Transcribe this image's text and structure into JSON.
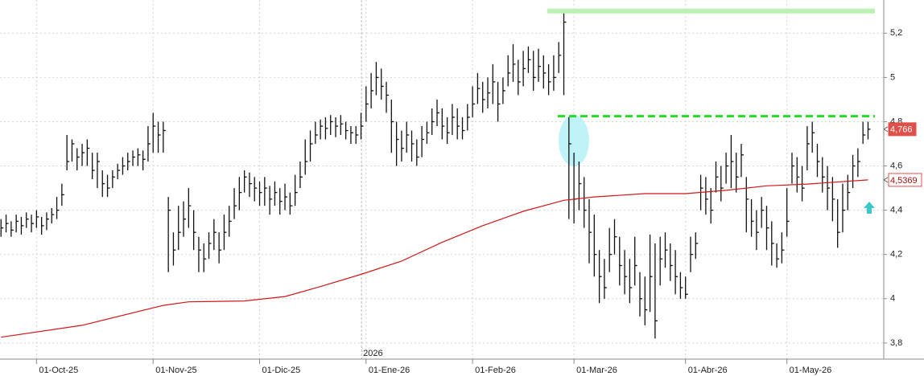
{
  "chart_data": {
    "type": "ohlc",
    "color": "#111111",
    "xlim": [
      -0.2,
      174.1
    ],
    "ylim": [
      3.727,
      5.35
    ],
    "yticks": [
      {
        "value": 3.8,
        "label": "3,8"
      },
      4,
      {
        "value": 4.2,
        "label": "4,2"
      },
      {
        "value": 4.4,
        "label": "4,4"
      },
      {
        "value": 4.6,
        "label": "4,6"
      },
      {
        "value": 4.8,
        "label": "4,8"
      },
      5,
      {
        "value": 5.2,
        "label": "5,2"
      }
    ],
    "xticks": [
      {
        "value": 7,
        "label": "01-Oct-25"
      },
      {
        "value": 30,
        "label": "01-Nov-25"
      },
      {
        "value": 51,
        "label": "01-Dic-25"
      },
      {
        "value": 72,
        "label": "01-Ene-26"
      },
      {
        "value": 93,
        "label": "01-Feb-26"
      },
      {
        "value": 113,
        "label": "01-Mar-26"
      },
      {
        "value": 135,
        "label": "01-Abr-26"
      },
      {
        "value": 155,
        "label": "01-May-26"
      }
    ],
    "grid": true,
    "year_marker": {
      "value": 71.1,
      "label": "2026"
    },
    "close": [
      4.32,
      4.34,
      4.31,
      4.35,
      4.33,
      4.36,
      4.34,
      4.37,
      4.33,
      4.36,
      4.38,
      4.4,
      4.47,
      4.62,
      4.7,
      4.64,
      4.66,
      4.68,
      4.58,
      4.62,
      4.52,
      4.5,
      4.55,
      4.58,
      4.6,
      4.62,
      4.64,
      4.65,
      4.63,
      4.7,
      4.78,
      4.74,
      4.76,
      4.4,
      4.22,
      4.3,
      4.36,
      4.42,
      4.3,
      4.22,
      4.18,
      4.25,
      4.3,
      4.22,
      4.3,
      4.35,
      4.42,
      4.48,
      4.55,
      4.52,
      4.5,
      4.48,
      4.5,
      4.45,
      4.48,
      4.44,
      4.46,
      4.42,
      4.48,
      4.55,
      4.62,
      4.7,
      4.74,
      4.78,
      4.77,
      4.8,
      4.78,
      4.79,
      4.76,
      4.75,
      4.74,
      4.78,
      4.88,
      4.94,
      5.0,
      4.96,
      4.92,
      4.8,
      4.72,
      4.68,
      4.74,
      4.7,
      4.64,
      4.72,
      4.75,
      4.8,
      4.84,
      4.78,
      4.75,
      4.82,
      4.78,
      4.76,
      4.82,
      4.88,
      4.95,
      4.9,
      4.93,
      4.98,
      4.88,
      4.94,
      5.02,
      5.06,
      4.98,
      5.04,
      5.08,
      5.0,
      5.05,
      5.02,
      4.98,
      5.0,
      5.1,
      5.25,
      4.7,
      4.45,
      4.52,
      4.4,
      4.3,
      4.2,
      4.1,
      4.05,
      4.2,
      4.28,
      4.15,
      4.1,
      4.05,
      4.15,
      4.0,
      3.95,
      4.1,
      3.9,
      4.18,
      4.22,
      4.15,
      4.1,
      4.05,
      4.02,
      4.2,
      4.25,
      4.5,
      4.45,
      4.4,
      4.55,
      4.5,
      4.6,
      4.62,
      4.55,
      4.65,
      4.45,
      4.35,
      4.3,
      4.4,
      4.32,
      4.25,
      4.18,
      4.22,
      4.35,
      4.6,
      4.55,
      4.5,
      4.7,
      4.75,
      4.62,
      4.55,
      4.5,
      4.45,
      4.3,
      4.4,
      4.48,
      4.6,
      4.62,
      4.74,
      4.766
    ],
    "high": [
      4.36,
      4.38,
      4.35,
      4.38,
      4.37,
      4.39,
      4.38,
      4.4,
      4.37,
      4.39,
      4.41,
      4.46,
      4.52,
      4.74,
      4.72,
      4.68,
      4.7,
      4.72,
      4.66,
      4.66,
      4.58,
      4.56,
      4.58,
      4.61,
      4.64,
      4.66,
      4.67,
      4.68,
      4.67,
      4.78,
      4.84,
      4.8,
      4.8,
      4.46,
      4.3,
      4.42,
      4.44,
      4.5,
      4.4,
      4.28,
      4.25,
      4.3,
      4.36,
      4.3,
      4.38,
      4.42,
      4.5,
      4.55,
      4.58,
      4.57,
      4.55,
      4.53,
      4.55,
      4.51,
      4.53,
      4.5,
      4.52,
      4.48,
      4.56,
      4.62,
      4.72,
      4.76,
      4.8,
      4.81,
      4.82,
      4.83,
      4.82,
      4.83,
      4.8,
      4.78,
      4.78,
      4.84,
      4.96,
      5.02,
      5.07,
      5.04,
      4.98,
      4.9,
      4.8,
      4.76,
      4.8,
      4.76,
      4.72,
      4.78,
      4.8,
      4.86,
      4.9,
      4.86,
      4.82,
      4.88,
      4.86,
      4.82,
      4.88,
      4.96,
      5.02,
      4.98,
      5.0,
      5.06,
      4.98,
      5.0,
      5.1,
      5.15,
      5.08,
      5.12,
      5.14,
      5.12,
      5.13,
      5.1,
      5.06,
      5.1,
      5.16,
      5.3,
      4.82,
      4.66,
      4.62,
      4.55,
      4.45,
      4.38,
      4.22,
      4.18,
      4.32,
      4.36,
      4.28,
      4.22,
      4.18,
      4.28,
      4.12,
      4.1,
      4.29,
      4.25,
      4.28,
      4.3,
      4.25,
      4.22,
      4.12,
      4.1,
      4.28,
      4.3,
      4.56,
      4.55,
      4.5,
      4.62,
      4.6,
      4.66,
      4.74,
      4.66,
      4.7,
      4.55,
      4.45,
      4.4,
      4.46,
      4.42,
      4.35,
      4.25,
      4.3,
      4.5,
      4.66,
      4.64,
      4.6,
      4.78,
      4.8,
      4.7,
      4.64,
      4.6,
      4.55,
      4.45,
      4.52,
      4.56,
      4.65,
      4.68,
      4.8,
      4.8
    ],
    "low": [
      4.28,
      4.3,
      4.28,
      4.3,
      4.29,
      4.32,
      4.3,
      4.32,
      4.29,
      4.31,
      4.34,
      4.36,
      4.42,
      4.58,
      4.62,
      4.58,
      4.6,
      4.6,
      4.54,
      4.5,
      4.46,
      4.46,
      4.5,
      4.54,
      4.56,
      4.58,
      4.6,
      4.6,
      4.58,
      4.62,
      4.66,
      4.66,
      4.66,
      4.12,
      4.15,
      4.22,
      4.28,
      4.32,
      4.22,
      4.12,
      4.12,
      4.18,
      4.22,
      4.16,
      4.22,
      4.28,
      4.36,
      4.4,
      4.48,
      4.46,
      4.44,
      4.42,
      4.42,
      4.38,
      4.42,
      4.38,
      4.4,
      4.38,
      4.42,
      4.5,
      4.56,
      4.62,
      4.7,
      4.72,
      4.72,
      4.74,
      4.73,
      4.74,
      4.72,
      4.7,
      4.7,
      4.72,
      4.8,
      4.86,
      4.92,
      4.9,
      4.84,
      4.66,
      4.6,
      4.62,
      4.66,
      4.62,
      4.6,
      4.64,
      4.7,
      4.74,
      4.78,
      4.72,
      4.7,
      4.74,
      4.72,
      4.72,
      4.76,
      4.82,
      4.88,
      4.84,
      4.86,
      4.88,
      4.8,
      4.88,
      4.96,
      4.98,
      4.92,
      4.96,
      5.02,
      4.94,
      4.98,
      4.95,
      4.92,
      4.94,
      5.02,
      4.92,
      4.36,
      4.34,
      4.4,
      4.32,
      4.16,
      4.1,
      3.98,
      4.0,
      4.12,
      4.2,
      4.06,
      4.02,
      3.98,
      4.06,
      3.92,
      3.88,
      3.94,
      3.82,
      4.06,
      4.14,
      4.08,
      4.02,
      4.0,
      4.0,
      4.12,
      4.18,
      4.4,
      4.38,
      4.34,
      4.48,
      4.44,
      4.52,
      4.5,
      4.48,
      4.55,
      4.3,
      4.28,
      4.22,
      4.32,
      4.22,
      4.15,
      4.14,
      4.16,
      4.28,
      4.52,
      4.48,
      4.44,
      4.58,
      4.66,
      4.55,
      4.48,
      4.4,
      4.35,
      4.23,
      4.3,
      4.4,
      4.5,
      4.55,
      4.7,
      4.72
    ],
    "ma": {
      "color": "#d01818",
      "x": [
        0,
        16,
        32,
        37,
        48,
        56,
        63,
        71,
        79,
        87,
        95,
        103,
        111,
        117,
        127,
        135,
        143,
        151,
        159,
        171
      ],
      "values": [
        3.826,
        3.88,
        3.97,
        3.986,
        3.99,
        4.01,
        4.055,
        4.11,
        4.17,
        4.255,
        4.33,
        4.395,
        4.445,
        4.46,
        4.475,
        4.475,
        4.49,
        4.51,
        4.518,
        4.5369
      ]
    },
    "levels": [
      {
        "value": 5.3,
        "color": "#bdf0b5"
      },
      {
        "value": 4.825,
        "color": "#22dd22"
      }
    ],
    "price_labels": [
      {
        "value": 4.766,
        "label": "4,766",
        "color": "#e0504a"
      },
      {
        "value": 4.5369,
        "label": "4,5369",
        "color": "#e0504a"
      }
    ]
  }
}
